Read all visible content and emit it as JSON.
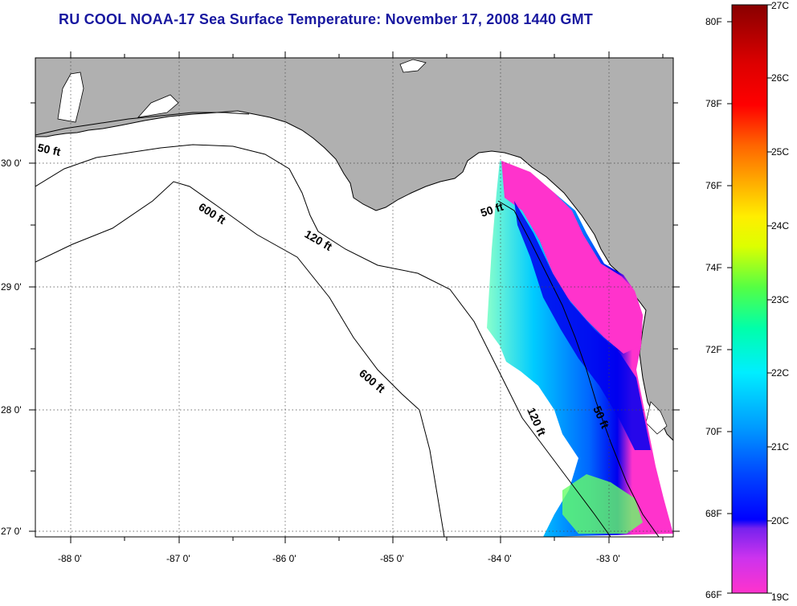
{
  "title": "RU COOL  NOAA-17  Sea Surface Temperature:  November 17, 2008 1440 GMT",
  "map": {
    "lon_ticks": [
      "-88 0'",
      "-87 0'",
      "-86 0'",
      "-85 0'",
      "-84 0'",
      "-83 0'"
    ],
    "lat_ticks": [
      "30 0'",
      "29 0'",
      "28 0'",
      "27 0'"
    ],
    "contour_labels": [
      "50 ft",
      "600 ft",
      "120 ft",
      "50 ft",
      "600 ft",
      "120 ft",
      "50 ft"
    ],
    "colors": {
      "land": "#b0b0b0",
      "ocean": "#ffffff",
      "frame": "#000000"
    }
  },
  "colorbar": {
    "fahrenheit": [
      "80F",
      "78F",
      "76F",
      "74F",
      "72F",
      "70F",
      "68F",
      "66F"
    ],
    "celsius": [
      "27C",
      "26C",
      "25C",
      "24C",
      "23C",
      "22C",
      "21C",
      "20C",
      "19C"
    ]
  }
}
